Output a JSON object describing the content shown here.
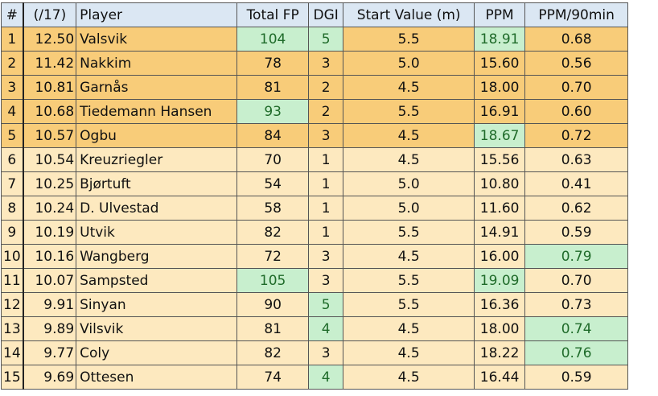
{
  "header": {
    "rank": "#",
    "score": "(/17)",
    "player": "Player",
    "total_fp": "Total FP",
    "dgi": "DGI",
    "start_value": "Start Value (m)",
    "ppm": "PPM",
    "ppm90": "PPM/90min"
  },
  "colors": {
    "top_rows": "#f8cc79",
    "other_rows": "#fde9bf",
    "highlight_fill": "#c8efce",
    "highlight_text": "#1f6b2a",
    "header_fill": "#dbe7f3"
  },
  "rows": [
    {
      "rank": "1",
      "score": "12.50",
      "player": "Valsvik",
      "total_fp": "104",
      "dgi": "5",
      "start_value": "5.5",
      "ppm": "18.91",
      "ppm90": "0.68"
    },
    {
      "rank": "2",
      "score": "11.42",
      "player": "Nakkim",
      "total_fp": "78",
      "dgi": "3",
      "start_value": "5.0",
      "ppm": "15.60",
      "ppm90": "0.56"
    },
    {
      "rank": "3",
      "score": "10.81",
      "player": "Garnås",
      "total_fp": "81",
      "dgi": "2",
      "start_value": "4.5",
      "ppm": "18.00",
      "ppm90": "0.70"
    },
    {
      "rank": "4",
      "score": "10.68",
      "player": "Tiedemann Hansen",
      "total_fp": "93",
      "dgi": "2",
      "start_value": "5.5",
      "ppm": "16.91",
      "ppm90": "0.60"
    },
    {
      "rank": "5",
      "score": "10.57",
      "player": "Ogbu",
      "total_fp": "84",
      "dgi": "3",
      "start_value": "4.5",
      "ppm": "18.67",
      "ppm90": "0.72"
    },
    {
      "rank": "6",
      "score": "10.54",
      "player": "Kreuzriegler",
      "total_fp": "70",
      "dgi": "1",
      "start_value": "4.5",
      "ppm": "15.56",
      "ppm90": "0.63"
    },
    {
      "rank": "7",
      "score": "10.25",
      "player": "Bjørtuft",
      "total_fp": "54",
      "dgi": "1",
      "start_value": "5.0",
      "ppm": "10.80",
      "ppm90": "0.41"
    },
    {
      "rank": "8",
      "score": "10.24",
      "player": "D. Ulvestad",
      "total_fp": "58",
      "dgi": "1",
      "start_value": "5.0",
      "ppm": "11.60",
      "ppm90": "0.62"
    },
    {
      "rank": "9",
      "score": "10.19",
      "player": "Utvik",
      "total_fp": "82",
      "dgi": "1",
      "start_value": "5.5",
      "ppm": "14.91",
      "ppm90": "0.59"
    },
    {
      "rank": "10",
      "score": "10.16",
      "player": "Wangberg",
      "total_fp": "72",
      "dgi": "3",
      "start_value": "4.5",
      "ppm": "16.00",
      "ppm90": "0.79"
    },
    {
      "rank": "11",
      "score": "10.07",
      "player": "Sampsted",
      "total_fp": "105",
      "dgi": "3",
      "start_value": "5.5",
      "ppm": "19.09",
      "ppm90": "0.70"
    },
    {
      "rank": "12",
      "score": "9.91",
      "player": "Sinyan",
      "total_fp": "90",
      "dgi": "5",
      "start_value": "5.5",
      "ppm": "16.36",
      "ppm90": "0.73"
    },
    {
      "rank": "13",
      "score": "9.89",
      "player": "Vilsvik",
      "total_fp": "81",
      "dgi": "4",
      "start_value": "4.5",
      "ppm": "18.00",
      "ppm90": "0.74"
    },
    {
      "rank": "14",
      "score": "9.77",
      "player": "Coly",
      "total_fp": "82",
      "dgi": "3",
      "start_value": "4.5",
      "ppm": "18.22",
      "ppm90": "0.76"
    },
    {
      "rank": "15",
      "score": "9.69",
      "player": "Ottesen",
      "total_fp": "74",
      "dgi": "4",
      "start_value": "4.5",
      "ppm": "16.44",
      "ppm90": "0.59"
    }
  ]
}
